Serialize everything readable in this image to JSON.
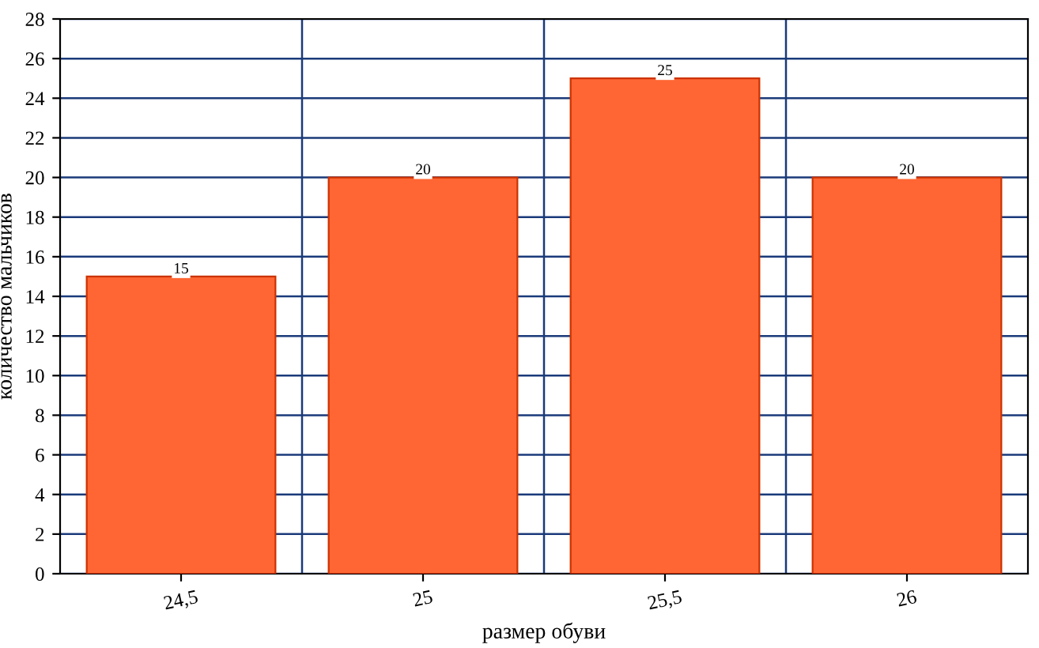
{
  "chart_data": {
    "type": "bar",
    "xlabel": "размер обуви",
    "ylabel": "количество мальчиков",
    "categories": [
      "24,5",
      "25",
      "25,5",
      "26"
    ],
    "values": [
      15,
      20,
      25,
      20
    ],
    "color": "#ff6633",
    "ylim": [
      0,
      28
    ],
    "yticks": [
      0,
      2,
      4,
      6,
      8,
      10,
      12,
      14,
      16,
      18,
      20,
      22,
      24,
      26,
      28
    ],
    "grid": true,
    "data_labels": true
  }
}
